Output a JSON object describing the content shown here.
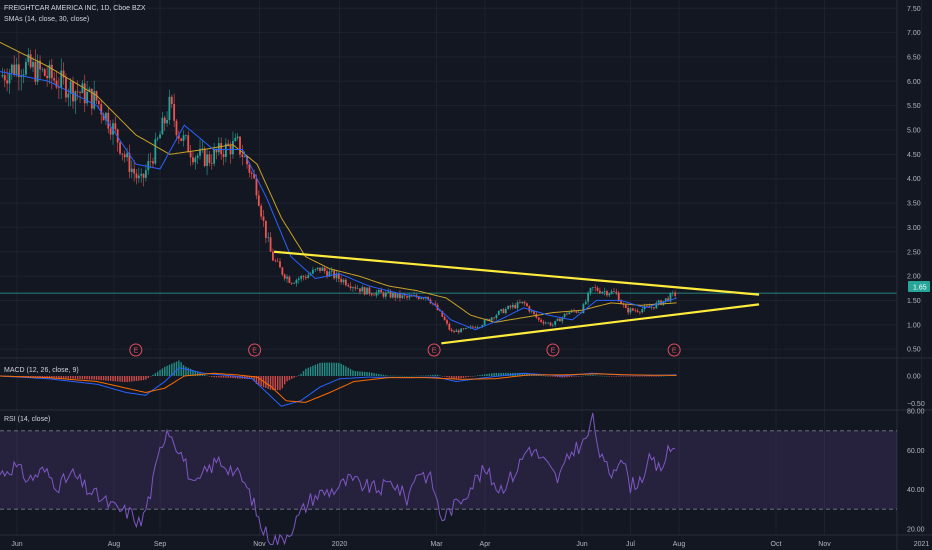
{
  "header": {
    "symbol_title": "FREIGHTCAR AMERICA INC, 1D, Cboe BZX",
    "sma_title": "SMAs (14, close, 30, close)",
    "macd_title": "MACD (12, 26, close, 9)",
    "rsi_title": "RSI (14, close)"
  },
  "price_axis": {
    "ticks": [
      "7.50",
      "7.00",
      "6.50",
      "6.00",
      "5.50",
      "5.00",
      "4.50",
      "4.00",
      "3.50",
      "3.00",
      "2.50",
      "2.00",
      "1.50",
      "1.00",
      "0.50"
    ],
    "last_price_label": "1.65",
    "last_price_color": "#26a69a"
  },
  "macd_axis": {
    "ticks": [
      "0.00",
      "−0.50"
    ]
  },
  "rsi_axis": {
    "ticks": [
      "80.00",
      "60.00",
      "40.00",
      "20.00"
    ]
  },
  "time_axis": {
    "labels": [
      "Jun",
      "Aug",
      "Sep",
      "Nov",
      "2020",
      "Mar",
      "Apr",
      "Jun",
      "Jul",
      "Aug",
      "Oct",
      "Nov",
      "2021"
    ],
    "x_values": [
      0.35,
      2.35,
      3.3,
      5.35,
      7.0,
      9.0,
      10.0,
      12.0,
      13.0,
      14.0,
      16.0,
      17.0,
      19.0
    ]
  },
  "earnings_markers": {
    "label": "E",
    "x_values": [
      2.8,
      5.25,
      8.95,
      11.4,
      13.9
    ]
  },
  "colors": {
    "background": "#131722",
    "up": "#26a69a",
    "down": "#ef5350",
    "sma14": "#2962ff",
    "sma30": "#c9a227",
    "trendline": "#ffeb3b",
    "macd": "#2962ff",
    "signal": "#ff6d00",
    "rsi": "#7e57c2",
    "rsi_band": "#7e57c2",
    "earnings": "#e04d5a"
  },
  "chart_data": [
    {
      "type": "candlestick",
      "title": "FREIGHTCAR AMERICA INC, 1D, Cboe BZX",
      "x_unit": "months since Jun 2019 start (Jun=0.35 label)",
      "ylim": [
        0.3,
        7.6
      ],
      "price_anchors": {
        "x": [
          0.0,
          0.4,
          0.8,
          1.2,
          1.6,
          2.0,
          2.3,
          2.6,
          2.9,
          3.2,
          3.5,
          3.7,
          4.0,
          4.3,
          4.6,
          4.9,
          5.1,
          5.3,
          5.45,
          5.6,
          5.8,
          6.0,
          6.3,
          6.6,
          6.9,
          7.2,
          7.5,
          7.8,
          8.1,
          8.4,
          8.8,
          9.1,
          9.3,
          9.6,
          9.9,
          10.2,
          10.5,
          10.8,
          11.1,
          11.4,
          11.7,
          12.0,
          12.2,
          12.4,
          12.7,
          12.9,
          13.1,
          13.4,
          13.7,
          13.95
        ],
        "close": [
          6.1,
          6.35,
          6.2,
          6.0,
          5.8,
          5.6,
          5.1,
          4.4,
          3.9,
          4.6,
          5.5,
          4.9,
          4.5,
          4.4,
          4.6,
          4.7,
          4.3,
          3.8,
          3.0,
          2.4,
          2.1,
          1.9,
          2.0,
          2.15,
          2.0,
          1.85,
          1.7,
          1.65,
          1.6,
          1.55,
          1.6,
          1.2,
          0.85,
          0.9,
          1.0,
          1.2,
          1.35,
          1.45,
          1.1,
          1.0,
          1.25,
          1.3,
          1.75,
          1.7,
          1.65,
          1.3,
          1.3,
          1.35,
          1.5,
          1.65
        ]
      },
      "sma14_anchors": {
        "x": [
          0.0,
          1.0,
          2.0,
          2.8,
          3.3,
          3.8,
          4.4,
          5.0,
          5.5,
          6.0,
          6.5,
          7.0,
          7.6,
          8.2,
          8.8,
          9.3,
          9.8,
          10.3,
          10.8,
          11.3,
          11.8,
          12.3,
          12.8,
          13.3,
          13.95
        ],
        "y": [
          6.2,
          6.0,
          5.5,
          4.3,
          4.2,
          5.1,
          4.6,
          4.6,
          3.6,
          2.4,
          1.95,
          2.05,
          1.8,
          1.65,
          1.55,
          1.1,
          0.9,
          1.1,
          1.35,
          1.2,
          1.1,
          1.5,
          1.5,
          1.35,
          1.55
        ]
      },
      "sma30_anchors": {
        "x": [
          0.0,
          1.0,
          2.0,
          2.8,
          3.5,
          4.2,
          4.8,
          5.3,
          5.8,
          6.3,
          6.8,
          7.4,
          8.0,
          8.6,
          9.2,
          9.7,
          10.2,
          10.8,
          11.4,
          12.0,
          12.6,
          13.2,
          13.95
        ],
        "y": [
          6.8,
          6.3,
          5.7,
          4.9,
          4.5,
          4.6,
          4.7,
          4.3,
          3.2,
          2.4,
          2.15,
          2.0,
          1.8,
          1.7,
          1.55,
          1.2,
          1.05,
          1.15,
          1.25,
          1.3,
          1.45,
          1.4,
          1.45
        ]
      },
      "trendlines": [
        {
          "from": [
            5.65,
            2.5
          ],
          "to": [
            15.65,
            1.62
          ],
          "name": "upper"
        },
        {
          "from": [
            9.1,
            0.62
          ],
          "to": [
            15.65,
            1.42
          ],
          "name": "lower"
        }
      ],
      "horizontal_line": 1.65
    },
    {
      "type": "line",
      "title": "MACD (12, 26, close, 9)",
      "ylim": [
        -0.6,
        0.25
      ],
      "macd_anchors": {
        "x": [
          0.0,
          1.0,
          2.0,
          2.6,
          3.0,
          3.4,
          3.7,
          4.2,
          4.8,
          5.2,
          5.5,
          5.8,
          6.2,
          6.6,
          7.0,
          7.6,
          8.4,
          9.0,
          9.4,
          10.0,
          10.8,
          11.6,
          12.2,
          12.8,
          13.4,
          13.95
        ],
        "y": [
          0.0,
          -0.05,
          -0.15,
          -0.3,
          -0.35,
          -0.1,
          0.15,
          0.05,
          0.0,
          -0.05,
          -0.3,
          -0.55,
          -0.45,
          -0.2,
          -0.05,
          -0.02,
          -0.03,
          -0.02,
          -0.1,
          -0.03,
          0.05,
          0.0,
          0.05,
          0.02,
          0.01,
          0.02
        ]
      },
      "signal_anchors": {
        "x": [
          0.0,
          1.0,
          2.0,
          2.6,
          3.0,
          3.4,
          3.8,
          4.4,
          4.9,
          5.3,
          5.6,
          5.9,
          6.3,
          6.8,
          7.3,
          8.0,
          8.8,
          9.5,
          10.2,
          10.9,
          11.6,
          12.3,
          13.0,
          13.95
        ],
        "y": [
          0.0,
          -0.03,
          -0.1,
          -0.22,
          -0.3,
          -0.22,
          0.0,
          0.05,
          0.02,
          -0.02,
          -0.2,
          -0.45,
          -0.48,
          -0.3,
          -0.1,
          -0.03,
          -0.03,
          -0.06,
          -0.05,
          0.02,
          0.02,
          0.04,
          0.02,
          0.01
        ]
      }
    },
    {
      "type": "line",
      "title": "RSI (14, close)",
      "ylim": [
        5,
        85
      ],
      "upper_band": 70,
      "lower_band": 30,
      "rsi_anchors": {
        "x": [
          0.0,
          0.3,
          0.6,
          0.9,
          1.2,
          1.5,
          1.8,
          2.1,
          2.4,
          2.7,
          2.9,
          3.1,
          3.3,
          3.45,
          3.6,
          3.8,
          4.0,
          4.2,
          4.5,
          4.8,
          5.0,
          5.2,
          5.4,
          5.6,
          5.8,
          6.0,
          6.2,
          6.4,
          6.6,
          6.9,
          7.2,
          7.5,
          7.8,
          8.1,
          8.4,
          8.6,
          8.9,
          9.1,
          9.3,
          9.5,
          9.8,
          10.0,
          10.3,
          10.6,
          10.9,
          11.2,
          11.5,
          11.8,
          12.1,
          12.2,
          12.4,
          12.6,
          12.8,
          13.0,
          13.2,
          13.4,
          13.6,
          13.8,
          13.95
        ],
        "y": [
          48,
          52,
          45,
          50,
          42,
          48,
          40,
          35,
          30,
          28,
          22,
          38,
          60,
          72,
          65,
          55,
          40,
          48,
          55,
          50,
          45,
          35,
          20,
          15,
          14,
          20,
          28,
          35,
          38,
          40,
          45,
          42,
          40,
          44,
          35,
          50,
          45,
          25,
          30,
          35,
          45,
          50,
          40,
          48,
          62,
          55,
          45,
          60,
          65,
          78,
          55,
          48,
          58,
          42,
          45,
          55,
          50,
          60,
          62
        ]
      }
    }
  ]
}
